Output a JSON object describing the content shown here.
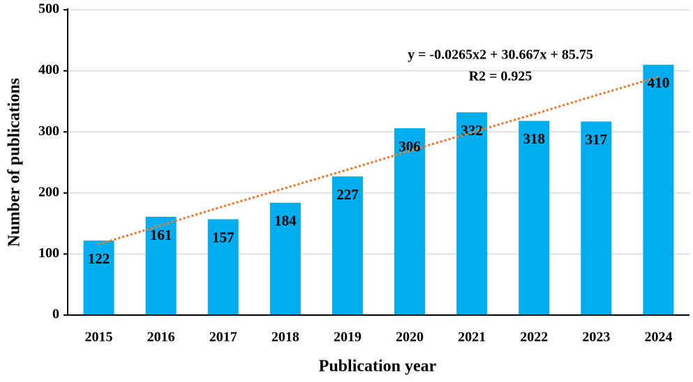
{
  "chart_data": {
    "type": "bar",
    "x_label": "Publication year",
    "y_label": "Number of publications",
    "categories": [
      "2015",
      "2016",
      "2017",
      "2018",
      "2019",
      "2020",
      "2021",
      "2022",
      "2023",
      "2024"
    ],
    "values": [
      122,
      161,
      157,
      184,
      227,
      306,
      332,
      318,
      317,
      410
    ],
    "color": "#00adee",
    "ylim": [
      0,
      500
    ],
    "yticks": [
      0,
      100,
      200,
      300,
      400,
      500
    ],
    "grid": true,
    "trendline": {
      "color": "#ed7d31",
      "values": [
        116,
        147,
        178,
        208,
        238,
        269,
        299,
        329,
        360,
        390
      ],
      "equation": "y = -0.0265x2 + 30.667x + 85.75",
      "r2": "R2 = 0.925"
    }
  }
}
